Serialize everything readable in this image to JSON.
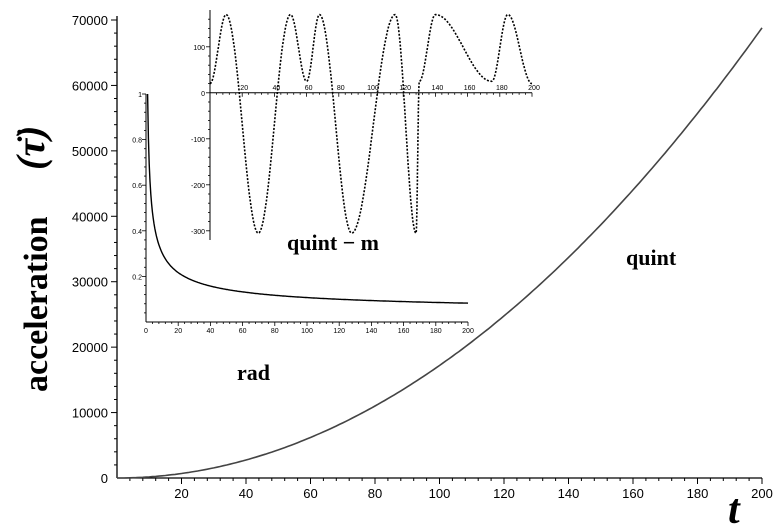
{
  "chart_data": [
    {
      "type": "line",
      "name": "main",
      "series": [
        {
          "name": "quint",
          "fn": "quint"
        }
      ],
      "curve_label": "quint",
      "xlabel": "t",
      "ylabel": "acceleration",
      "ylabel_symbol": "(τ̈)",
      "xlim": [
        0,
        200
      ],
      "ylim": [
        0,
        70000
      ],
      "xticks": [
        "20",
        "40",
        "60",
        "80",
        "100",
        "120",
        "140",
        "160",
        "180",
        "200"
      ],
      "yticks": [
        "0",
        "10000",
        "20000",
        "30000",
        "40000",
        "50000",
        "60000",
        "70000"
      ],
      "sample_points": [
        [
          0,
          0
        ],
        [
          50,
          4300
        ],
        [
          100,
          17200
        ],
        [
          150,
          38700
        ],
        [
          200,
          68800
        ]
      ],
      "grid": false
    },
    {
      "type": "line",
      "name": "inset_rad",
      "series": [
        {
          "name": "rad",
          "fn": "rad"
        }
      ],
      "curve_label": "rad",
      "xlim": [
        0,
        200
      ],
      "ylim": [
        0,
        1
      ],
      "xticks": [
        "0",
        "20",
        "40",
        "60",
        "80",
        "100",
        "120",
        "140",
        "160",
        "180",
        "200"
      ],
      "yticks": [
        "0.2",
        "0.4",
        "0.6",
        "0.8",
        "1"
      ],
      "sample_points": [
        [
          1,
          1.0
        ],
        [
          10,
          0.38
        ],
        [
          50,
          0.18
        ],
        [
          100,
          0.12
        ],
        [
          200,
          0.08
        ]
      ],
      "grid": false
    },
    {
      "type": "line",
      "name": "inset_quint_m",
      "series": [
        {
          "name": "quint − m",
          "fn": "quintm"
        }
      ],
      "curve_label": "quint − m",
      "line_style": "dotted",
      "xlim": [
        0,
        200
      ],
      "ylim": [
        -320,
        180
      ],
      "xticks": [
        "20",
        "40",
        "60",
        "80",
        "100",
        "120",
        "140",
        "160",
        "180",
        "200"
      ],
      "yticks": [
        "100",
        "0",
        "-100",
        "-200",
        "-300"
      ],
      "maxima_x": [
        10,
        50,
        68,
        115,
        140,
        185
      ],
      "minima_x": [
        30,
        88,
        128
      ],
      "shallow_minima_x": [
        60,
        130,
        175
      ],
      "max_value": 170,
      "min_value": -305,
      "shallow_min_value": 25,
      "grid": false
    }
  ]
}
